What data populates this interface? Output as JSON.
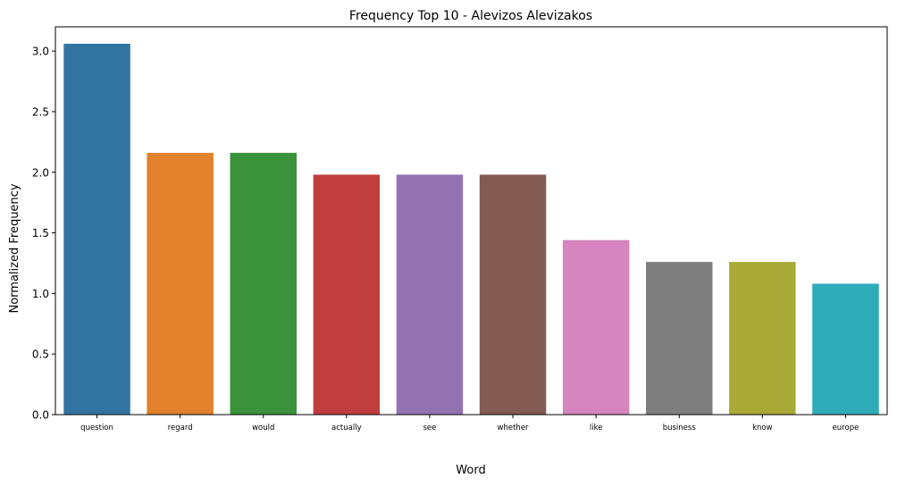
{
  "chart_data": {
    "type": "bar",
    "title": "Frequency Top 10 - Alevizos Alevizakos",
    "xlabel": "Word",
    "ylabel": "Normalized Frequency",
    "categories": [
      "question",
      "regard",
      "would",
      "actually",
      "see",
      "whether",
      "like",
      "business",
      "know",
      "europe"
    ],
    "values": [
      3.06,
      2.16,
      2.16,
      1.98,
      1.98,
      1.98,
      1.44,
      1.26,
      1.26,
      1.08
    ],
    "colors": [
      "#3274a1",
      "#e1812c",
      "#3a923a",
      "#c03d3e",
      "#9372b2",
      "#845b53",
      "#d684bd",
      "#7f7f7f",
      "#a9aa35",
      "#2eabb8"
    ],
    "ylim": [
      0,
      3.2
    ],
    "yticks": [
      0.0,
      0.5,
      1.0,
      1.5,
      2.0,
      2.5,
      3.0
    ],
    "ytick_labels": [
      "0.0",
      "0.5",
      "1.0",
      "1.5",
      "2.0",
      "2.5",
      "3.0"
    ],
    "grid": false,
    "legend": "none"
  }
}
